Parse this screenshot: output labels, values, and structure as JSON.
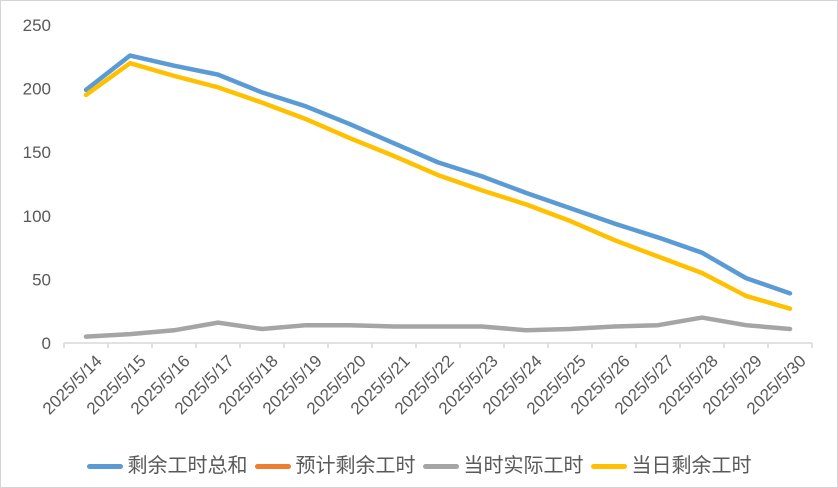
{
  "chart": {
    "background": "#FFFFFF",
    "border_color": "#D4D4D8",
    "axis_line_color": "#D9D9D9",
    "text_color": "#595959"
  },
  "chart_data": {
    "type": "line",
    "title": "",
    "xlabel": "",
    "ylabel": "",
    "ylim": [
      0,
      250
    ],
    "yticks": [
      0,
      50,
      100,
      150,
      200,
      250
    ],
    "grid": false,
    "legend_position": "bottom",
    "categories": [
      "2025/5/14",
      "2025/5/15",
      "2025/5/16",
      "2025/5/17",
      "2025/5/18",
      "2025/5/19",
      "2025/5/20",
      "2025/5/21",
      "2025/5/22",
      "2025/5/23",
      "2025/5/24",
      "2025/5/25",
      "2025/5/26",
      "2025/5/27",
      "2025/5/28",
      "2025/5/29",
      "2025/5/30"
    ],
    "series": [
      {
        "name": "剩余工时总和",
        "color": "#5B9BD5",
        "values": [
          199,
          226,
          218,
          211,
          197,
          186,
          172,
          157,
          142,
          131,
          118,
          106,
          94,
          83,
          71,
          51,
          39
        ]
      },
      {
        "name": "预计剩余工时",
        "color": "#ED7D31",
        "values": []
      },
      {
        "name": "当时实际工时",
        "color": "#A5A5A5",
        "values": [
          5,
          7,
          10,
          16,
          11,
          14,
          14,
          13,
          13,
          13,
          10,
          11,
          13,
          14,
          20,
          14,
          11
        ]
      },
      {
        "name": "当日剩余工时",
        "color": "#FFC000",
        "values": [
          195,
          220,
          210,
          201,
          189,
          176,
          161,
          147,
          132,
          120,
          109,
          96,
          81,
          68,
          55,
          37,
          27
        ]
      }
    ]
  }
}
